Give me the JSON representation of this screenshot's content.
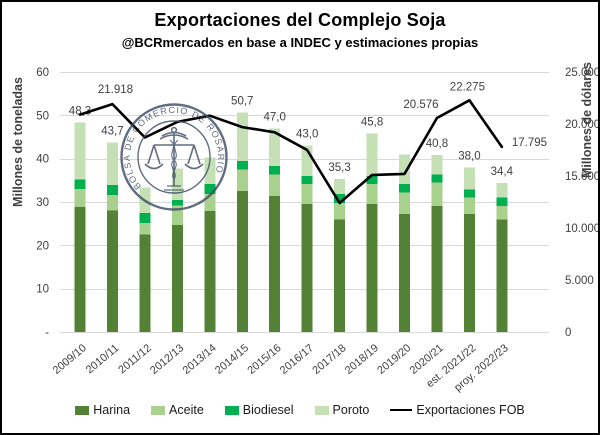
{
  "title": "Exportaciones del Complejo Soja",
  "subtitle": "@BCRmercados en base a INDEC y estimaciones propias",
  "left_axis": {
    "title": "Millones de toneladas",
    "ticks": [
      "60",
      "50",
      "40",
      "30",
      "20",
      "10",
      "-"
    ],
    "tick_values": [
      60,
      50,
      40,
      30,
      20,
      10,
      0
    ],
    "range": [
      0,
      60
    ]
  },
  "right_axis": {
    "title": "Millones de dólares",
    "ticks": [
      "25.000",
      "20.000",
      "15.000",
      "10.000",
      "5.000",
      "0"
    ],
    "tick_values": [
      25000,
      20000,
      15000,
      10000,
      5000,
      0
    ],
    "range": [
      0,
      25000
    ]
  },
  "watermark": {
    "text": "BOLSA DE COMERCIO DE ROSARIO",
    "color": "#3e4d67"
  },
  "legend": [
    {
      "label": "Harina",
      "type": "box",
      "color": "#538135"
    },
    {
      "label": "Aceite",
      "type": "box",
      "color": "#A9D18E"
    },
    {
      "label": "Biodiesel",
      "type": "box",
      "color": "#00B050"
    },
    {
      "label": "Poroto",
      "type": "box",
      "color": "#C5E0B4"
    },
    {
      "label": "Exportaciones FOB",
      "type": "line",
      "color": "#000000"
    }
  ],
  "colors": {
    "gridline": "#d9d9d9",
    "label_text": "#404040",
    "tick_text": "#404040"
  },
  "chart_data": [
    {
      "type": "bar",
      "stacked": true,
      "axis": "left",
      "ylabel": "Millones de toneladas",
      "ylim": [
        0,
        60
      ],
      "categories": [
        "2009/10",
        "2010/11",
        "2011/12",
        "2012/13",
        "2013/14",
        "2014/15",
        "2015/16",
        "2016/17",
        "2017/18",
        "2018/19",
        "2019/20",
        "2020/21",
        "est. 2021/22",
        "proy. 2022/23"
      ],
      "series": [
        {
          "name": "Harina",
          "color": "#538135",
          "values": [
            28.8,
            28.0,
            22.5,
            24.7,
            27.9,
            32.5,
            31.4,
            29.5,
            26.0,
            29.5,
            27.2,
            29.1,
            27.2,
            26.0
          ]
        },
        {
          "name": "Aceite",
          "color": "#A9D18E",
          "values": [
            4.2,
            3.6,
            2.7,
            4.5,
            4.0,
            5.0,
            5.0,
            4.6,
            3.8,
            4.6,
            5.0,
            5.4,
            3.8,
            3.1
          ]
        },
        {
          "name": "Biodiesel",
          "color": "#00B050",
          "values": [
            2.2,
            2.3,
            2.3,
            1.3,
            2.2,
            2.0,
            1.9,
            1.9,
            2.0,
            1.9,
            1.9,
            1.9,
            1.9,
            1.9
          ]
        },
        {
          "name": "Poroto",
          "color": "#C5E0B4",
          "values": [
            13.1,
            9.8,
            5.8,
            7.2,
            6.2,
            11.2,
            8.7,
            7.0,
            3.5,
            9.8,
            6.9,
            4.4,
            5.1,
            3.4
          ]
        }
      ],
      "totals": [
        48.3,
        43.7,
        33.3,
        37.7,
        40.3,
        50.7,
        47.0,
        43.0,
        35.3,
        45.8,
        41.0,
        40.8,
        38.0,
        34.4
      ],
      "total_labels": [
        "48,3",
        "43,7",
        null,
        null,
        null,
        "50,7",
        "47,0",
        "43,0",
        "35,3",
        "45,8",
        null,
        "40,8",
        "38,0",
        "34,4"
      ]
    },
    {
      "type": "line",
      "name": "Exportaciones FOB",
      "axis": "right",
      "ylabel": "Millones de dólares",
      "ylim": [
        0,
        25000
      ],
      "color": "#000000",
      "categories": [
        "2009/10",
        "2010/11",
        "2011/12",
        "2012/13",
        "2013/14",
        "2014/15",
        "2015/16",
        "2016/17",
        "2017/18",
        "2018/19",
        "2019/20",
        "2020/21",
        "est. 2021/22",
        "proy. 2022/23"
      ],
      "values": [
        20900,
        21918,
        18700,
        20200,
        20800,
        19700,
        19200,
        17500,
        12400,
        15100,
        15200,
        20576,
        22275,
        17795
      ],
      "labels": [
        null,
        "21.918",
        null,
        null,
        null,
        null,
        null,
        null,
        null,
        null,
        null,
        "20.576",
        "22.275",
        "17.795"
      ]
    }
  ]
}
